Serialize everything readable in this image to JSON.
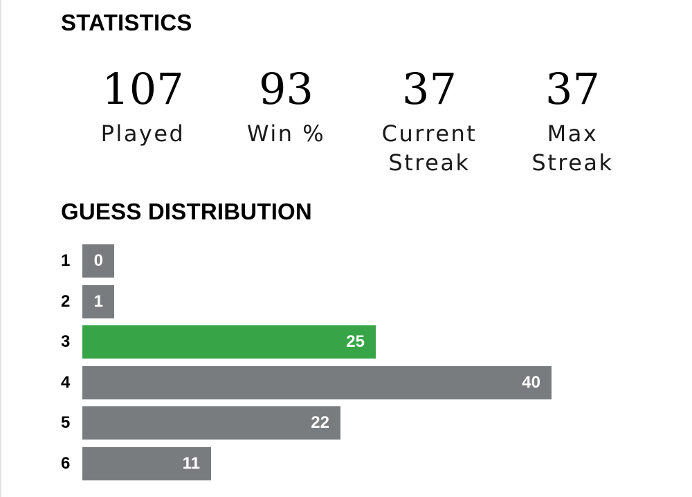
{
  "statistics": {
    "title": "STATISTICS",
    "items": [
      {
        "value": "107",
        "label": "Played"
      },
      {
        "value": "93",
        "label": "Win %"
      },
      {
        "value": "37",
        "label": "Current\nStreak"
      },
      {
        "value": "37",
        "label": "Max\nStreak"
      }
    ]
  },
  "distribution": {
    "title": "GUESS DISTRIBUTION",
    "max_count": 40,
    "rows": [
      {
        "guess": "1",
        "count": 0,
        "label": "0",
        "highlight": false
      },
      {
        "guess": "2",
        "count": 1,
        "label": "1",
        "highlight": false
      },
      {
        "guess": "3",
        "count": 25,
        "label": "25",
        "highlight": true
      },
      {
        "guess": "4",
        "count": 40,
        "label": "40",
        "highlight": false
      },
      {
        "guess": "5",
        "count": 22,
        "label": "22",
        "highlight": false
      },
      {
        "guess": "6",
        "count": 11,
        "label": "11",
        "highlight": false
      }
    ]
  },
  "colors": {
    "bar": "#787c7e",
    "highlight": "#37a547",
    "bar_text": "#ffffff"
  }
}
